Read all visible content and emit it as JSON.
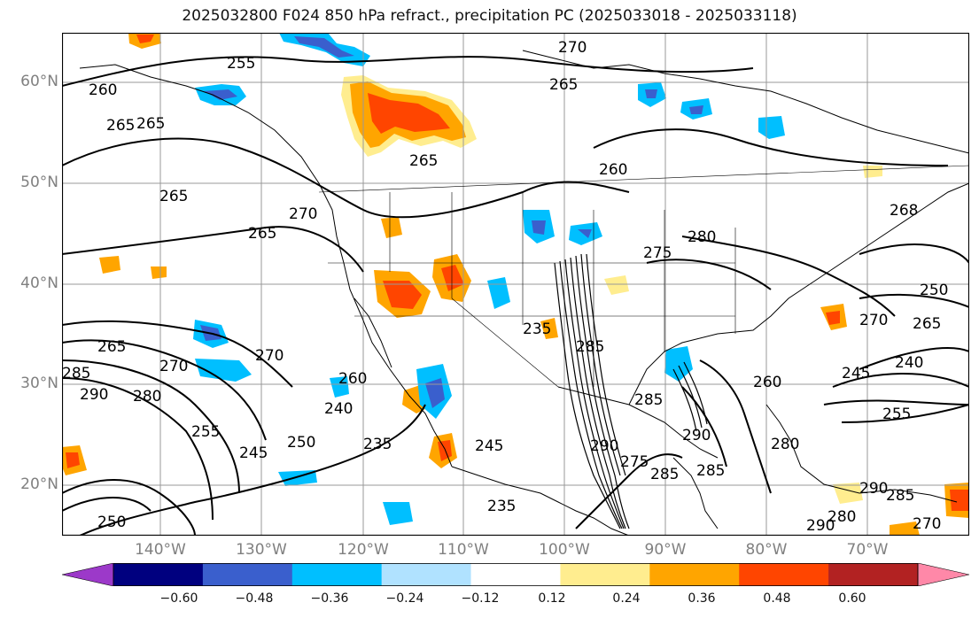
{
  "title": "2025032800 F024 850 hPa refract., precipitation PC (2025033018 - 2025033118)",
  "map": {
    "latitude_labels": [
      "60°N",
      "50°N",
      "40°N",
      "30°N",
      "20°N"
    ],
    "longitude_labels": [
      "140°W",
      "130°W",
      "120°W",
      "110°W",
      "100°W",
      "90°W",
      "80°W",
      "70°W"
    ],
    "contour_labels": [
      {
        "text": "270"
      },
      {
        "text": "255"
      },
      {
        "text": "265"
      },
      {
        "text": "260"
      },
      {
        "text": "265"
      },
      {
        "text": "265"
      },
      {
        "text": "260"
      },
      {
        "text": "265"
      },
      {
        "text": "270"
      },
      {
        "text": "265"
      },
      {
        "text": "268"
      },
      {
        "text": "275"
      },
      {
        "text": "280"
      },
      {
        "text": "250"
      },
      {
        "text": "270"
      },
      {
        "text": "265"
      },
      {
        "text": "265"
      },
      {
        "text": "235"
      },
      {
        "text": "285"
      },
      {
        "text": "245"
      },
      {
        "text": "240"
      },
      {
        "text": "255"
      },
      {
        "text": "280"
      },
      {
        "text": "290"
      },
      {
        "text": "285"
      },
      {
        "text": "285"
      },
      {
        "text": "290"
      },
      {
        "text": "270"
      },
      {
        "text": "270"
      },
      {
        "text": "260"
      },
      {
        "text": "240"
      },
      {
        "text": "255"
      },
      {
        "text": "245"
      },
      {
        "text": "250"
      },
      {
        "text": "235"
      },
      {
        "text": "245"
      },
      {
        "text": "235"
      },
      {
        "text": "275"
      },
      {
        "text": "285"
      },
      {
        "text": "290"
      },
      {
        "text": "260"
      },
      {
        "text": "280"
      },
      {
        "text": "285"
      },
      {
        "text": "280"
      },
      {
        "text": "290"
      },
      {
        "text": "285"
      },
      {
        "text": "270"
      },
      {
        "text": "250"
      },
      {
        "text": "290"
      },
      {
        "text": "265"
      }
    ]
  },
  "colorbar": {
    "ticks": [
      "−0.60",
      "−0.48",
      "−0.36",
      "−0.24",
      "−0.12",
      "0.12",
      "0.24",
      "0.36",
      "0.48",
      "0.60"
    ],
    "colors": [
      "#9c39c9",
      "#00007f",
      "#3a5fcd",
      "#00bfff",
      "#b0e2ff",
      "#ffffff",
      "#ffed8f",
      "#ffa500",
      "#ff4500",
      "#b22222",
      "#ff88a8"
    ]
  }
}
